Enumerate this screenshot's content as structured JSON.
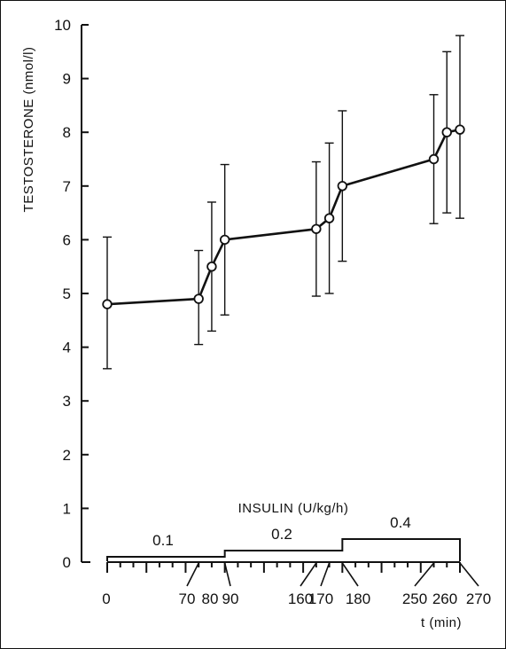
{
  "chart_data": {
    "type": "line",
    "ylabel": "TESTOSTERONE (nmol/l)",
    "xlabel": "t (min)",
    "ylim": [
      0,
      10
    ],
    "xlim": [
      0,
      270
    ],
    "y_ticks": [
      "0",
      "1",
      "2",
      "3",
      "4",
      "5",
      "6",
      "7",
      "8",
      "9",
      "10"
    ],
    "x_tick_labels": [
      "0",
      "70",
      "80",
      "90",
      "160",
      "170",
      "180",
      "250",
      "260",
      "270"
    ],
    "grid": false,
    "series": [
      {
        "x": [
          0,
          70,
          80,
          90,
          160,
          170,
          180,
          250,
          260,
          270
        ],
        "y": [
          4.8,
          4.9,
          5.5,
          6.0,
          6.2,
          6.4,
          7.0,
          7.5,
          8.0,
          8.05
        ],
        "err_low": [
          3.6,
          4.05,
          4.3,
          4.6,
          4.95,
          5.0,
          5.6,
          6.3,
          6.5,
          6.4
        ],
        "err_high": [
          6.05,
          5.8,
          6.7,
          7.4,
          7.45,
          7.8,
          8.4,
          8.7,
          9.5,
          9.8
        ]
      }
    ],
    "insulin": {
      "title": "INSULIN (U/kg/h)",
      "steps": [
        {
          "label": "0.1",
          "x_start": 0,
          "x_end": 90,
          "level": 0.1
        },
        {
          "label": "0.2",
          "x_start": 90,
          "x_end": 180,
          "level": 0.2
        },
        {
          "label": "0.4",
          "x_start": 180,
          "x_end": 270,
          "level": 0.4
        }
      ]
    }
  }
}
